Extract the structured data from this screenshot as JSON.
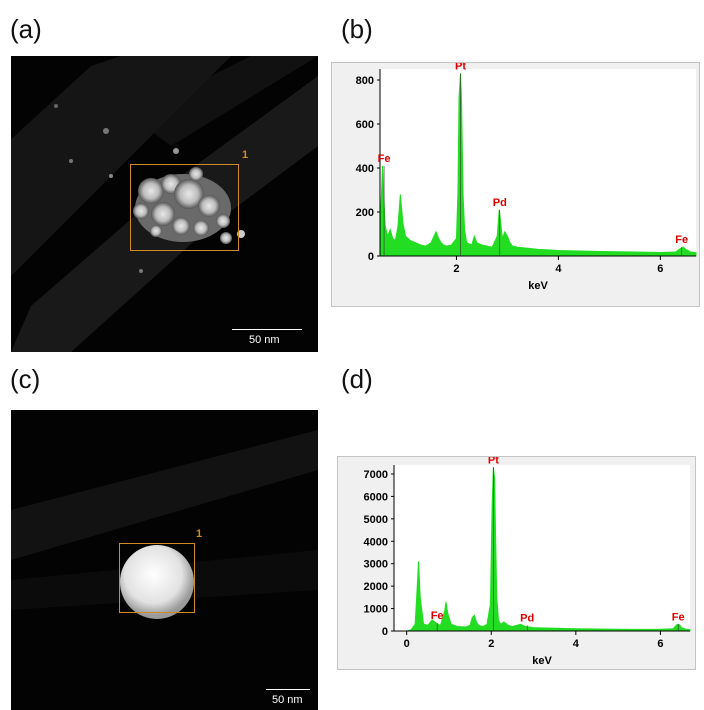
{
  "panels": {
    "a": {
      "label": "(a)",
      "roi_number": "1",
      "scale_text": "50 nm"
    },
    "b": {
      "label": "(b)"
    },
    "c": {
      "label": "(c)",
      "roi_number": "1",
      "scale_text": "50 nm"
    },
    "d": {
      "label": "(d)"
    }
  },
  "colors": {
    "spectrum": "#22dd22",
    "peak_label": "#e00000",
    "roi": "#d08a2a",
    "frame_bg": "#f0f0f0"
  },
  "chart_data": [
    {
      "type": "area",
      "panel": "b",
      "xlabel": "keV",
      "xlim": [
        0.5,
        6.7
      ],
      "ylim": [
        0,
        850
      ],
      "x_ticks": [
        2,
        4,
        6
      ],
      "y_ticks": [
        0,
        200,
        400,
        600,
        800
      ],
      "grid": false,
      "series": [
        {
          "x": [
            0.5,
            0.55,
            0.6,
            0.65,
            0.7,
            0.75,
            0.8,
            0.85,
            0.9,
            0.95,
            1.0,
            1.05,
            1.1,
            1.2,
            1.3,
            1.4,
            1.5,
            1.6,
            1.65,
            1.7,
            1.75,
            1.8,
            1.9,
            2.0,
            2.03,
            2.05,
            2.08,
            2.1,
            2.13,
            2.16,
            2.2,
            2.3,
            2.35,
            2.4,
            2.5,
            2.6,
            2.7,
            2.8,
            2.84,
            2.87,
            2.9,
            2.95,
            3.0,
            3.05,
            3.1,
            3.2,
            3.4,
            3.6,
            3.8,
            4.0,
            4.5,
            5.0,
            5.5,
            6.0,
            6.3,
            6.4,
            6.45,
            6.5,
            6.6,
            6.7
          ],
          "y": [
            110,
            410,
            140,
            90,
            120,
            80,
            70,
            130,
            280,
            150,
            90,
            80,
            70,
            60,
            50,
            45,
            60,
            110,
            80,
            60,
            50,
            45,
            50,
            80,
            300,
            720,
            830,
            700,
            280,
            120,
            60,
            50,
            90,
            60,
            50,
            45,
            40,
            90,
            210,
            150,
            80,
            110,
            90,
            60,
            45,
            40,
            35,
            30,
            28,
            25,
            22,
            20,
            18,
            16,
            18,
            35,
            40,
            30,
            18,
            15
          ]
        }
      ],
      "peak_labels": [
        {
          "text": "Fe",
          "x": 0.58,
          "y": 410
        },
        {
          "text": "Pt",
          "x": 2.08,
          "y": 830
        },
        {
          "text": "Pd",
          "x": 2.85,
          "y": 210
        },
        {
          "text": "Fe",
          "x": 6.42,
          "y": 40
        }
      ]
    },
    {
      "type": "area",
      "panel": "d",
      "xlabel": "keV",
      "xlim": [
        -0.3,
        6.7
      ],
      "ylim": [
        0,
        7400
      ],
      "x_ticks": [
        0,
        2,
        4,
        6
      ],
      "y_ticks": [
        0,
        1000,
        2000,
        3000,
        4000,
        5000,
        6000,
        7000
      ],
      "grid": false,
      "series": [
        {
          "x": [
            -0.3,
            0.0,
            0.1,
            0.2,
            0.25,
            0.28,
            0.32,
            0.4,
            0.5,
            0.6,
            0.7,
            0.8,
            0.9,
            0.93,
            0.97,
            1.05,
            1.2,
            1.4,
            1.5,
            1.55,
            1.6,
            1.65,
            1.7,
            1.8,
            1.9,
            1.98,
            2.02,
            2.05,
            2.08,
            2.1,
            2.13,
            2.17,
            2.22,
            2.3,
            2.4,
            2.5,
            2.6,
            2.7,
            2.8,
            2.9,
            3.0,
            3.5,
            4.0,
            4.5,
            5.0,
            5.5,
            6.0,
            6.3,
            6.4,
            6.45,
            6.5,
            6.6,
            6.7
          ],
          "y": [
            0,
            0,
            50,
            300,
            2000,
            3100,
            1500,
            300,
            250,
            500,
            350,
            250,
            900,
            1300,
            800,
            300,
            200,
            180,
            250,
            600,
            700,
            400,
            250,
            200,
            300,
            1200,
            5500,
            7300,
            6800,
            4500,
            1500,
            500,
            300,
            400,
            250,
            200,
            250,
            300,
            200,
            180,
            150,
            120,
            100,
            90,
            80,
            70,
            80,
            100,
            300,
            280,
            150,
            80,
            60
          ]
        }
      ],
      "peak_labels": [
        {
          "text": "Fe",
          "x": 0.72,
          "y": 350
        },
        {
          "text": "Pt",
          "x": 2.05,
          "y": 7300
        },
        {
          "text": "Pd",
          "x": 2.85,
          "y": 250
        },
        {
          "text": "Fe",
          "x": 6.42,
          "y": 300
        }
      ]
    }
  ]
}
